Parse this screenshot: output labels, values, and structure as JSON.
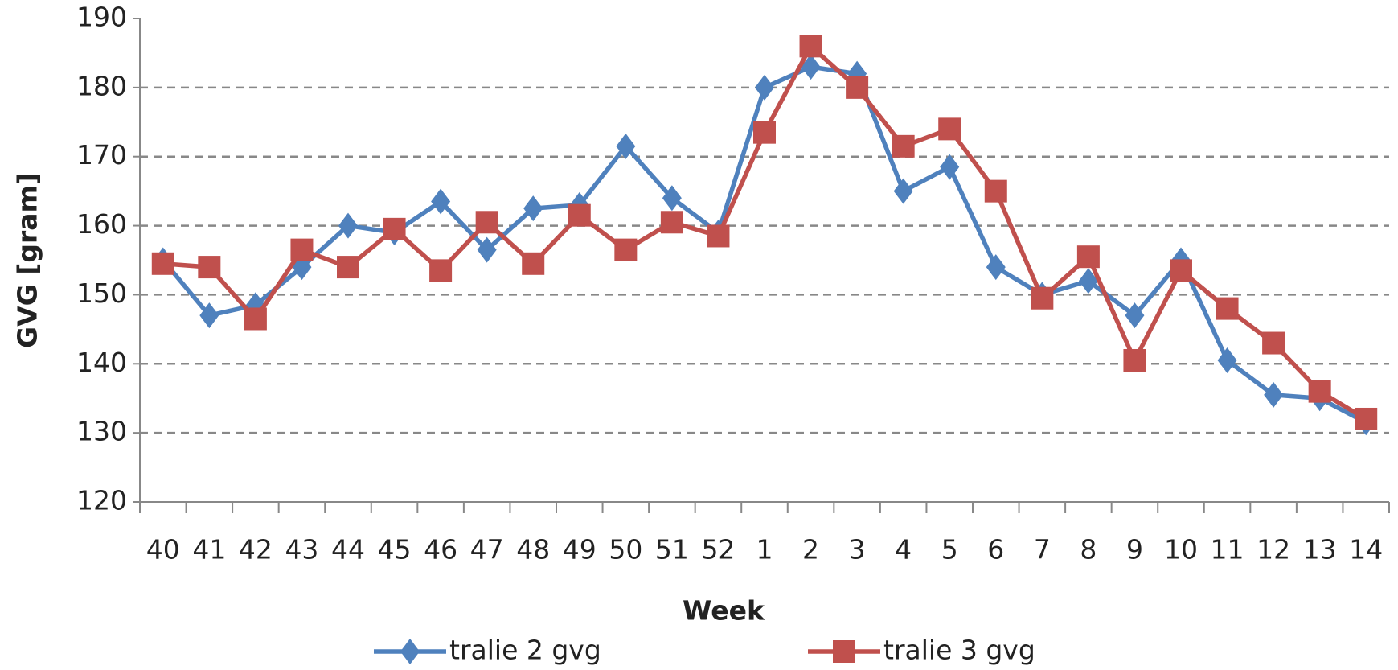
{
  "chart_data": {
    "type": "line",
    "x_label": "Week",
    "y_label": "GVG [gram]",
    "categories": [
      "40",
      "41",
      "42",
      "43",
      "44",
      "45",
      "46",
      "47",
      "48",
      "49",
      "50",
      "51",
      "52",
      "1",
      "2",
      "3",
      "4",
      "5",
      "6",
      "7",
      "8",
      "9",
      "10",
      "11",
      "12",
      "13",
      "14"
    ],
    "series": [
      {
        "name": "tralie 2 gvg",
        "color": "#4f81bd",
        "marker": "diamond",
        "values": [
          155,
          147,
          148.5,
          154,
          160,
          159,
          163.5,
          156.5,
          162.5,
          163,
          171.5,
          164,
          159,
          180,
          183,
          182,
          165,
          168.5,
          154,
          150,
          152,
          147,
          155,
          140.5,
          135.5,
          135,
          131.5
        ]
      },
      {
        "name": "tralie 3 gvg",
        "color": "#c0504d",
        "marker": "square",
        "values": [
          154.5,
          154,
          146.5,
          156.5,
          154,
          159.5,
          153.5,
          160.5,
          154.5,
          161.5,
          156.5,
          160.5,
          158.5,
          173.5,
          186,
          180,
          171.5,
          174,
          165,
          149.5,
          155.5,
          140.5,
          153.5,
          148,
          143,
          136,
          132
        ]
      }
    ],
    "ylim": [
      120,
      190
    ],
    "yticks": [
      120,
      130,
      140,
      150,
      160,
      170,
      180,
      190
    ],
    "grid": true,
    "legend": "bottom"
  }
}
